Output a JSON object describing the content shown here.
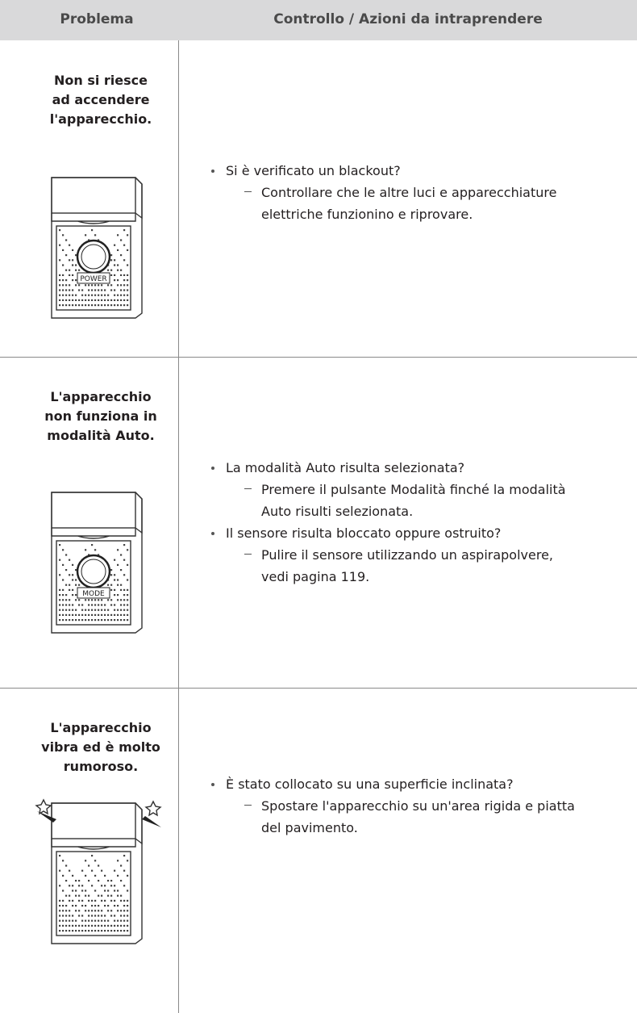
{
  "header": {
    "problem": "Problema",
    "actions": "Controllo / Azioni da intraprendere"
  },
  "rows": [
    {
      "problem_lines": [
        "Non si riesce",
        "ad accendere",
        "l'apparecchio."
      ],
      "illustration_label": "POWER",
      "checks": [
        {
          "question": [
            "Si è verificato un blackout?"
          ],
          "actions": [
            [
              "Controllare che le altre luci e apparecchiature",
              "elettriche funzionino e riprovare."
            ]
          ]
        }
      ]
    },
    {
      "problem_lines": [
        "L'apparecchio",
        "non funziona in",
        "modalità Auto."
      ],
      "illustration_label": "MODE",
      "checks": [
        {
          "question": [
            "La modalità Auto risulta selezionata?"
          ],
          "actions": [
            [
              "Premere il pulsante Modalità finché la modalità",
              "Auto risulti selezionata."
            ]
          ]
        },
        {
          "question": [
            "Il sensore risulta bloccato oppure ostruito?"
          ],
          "actions": [
            [
              "Pulire il sensore utilizzando un aspirapolvere,",
              "vedi pagina 119."
            ]
          ]
        }
      ]
    },
    {
      "problem_lines": [
        "L'apparecchio",
        "vibra ed è molto",
        "rumoroso."
      ],
      "checks": [
        {
          "question": [
            "È stato collocato su una superficie inclinata?"
          ],
          "actions": [
            [
              "Spostare l'apparecchio su un'area rigida e piatta",
              "del pavimento."
            ]
          ]
        }
      ]
    }
  ]
}
